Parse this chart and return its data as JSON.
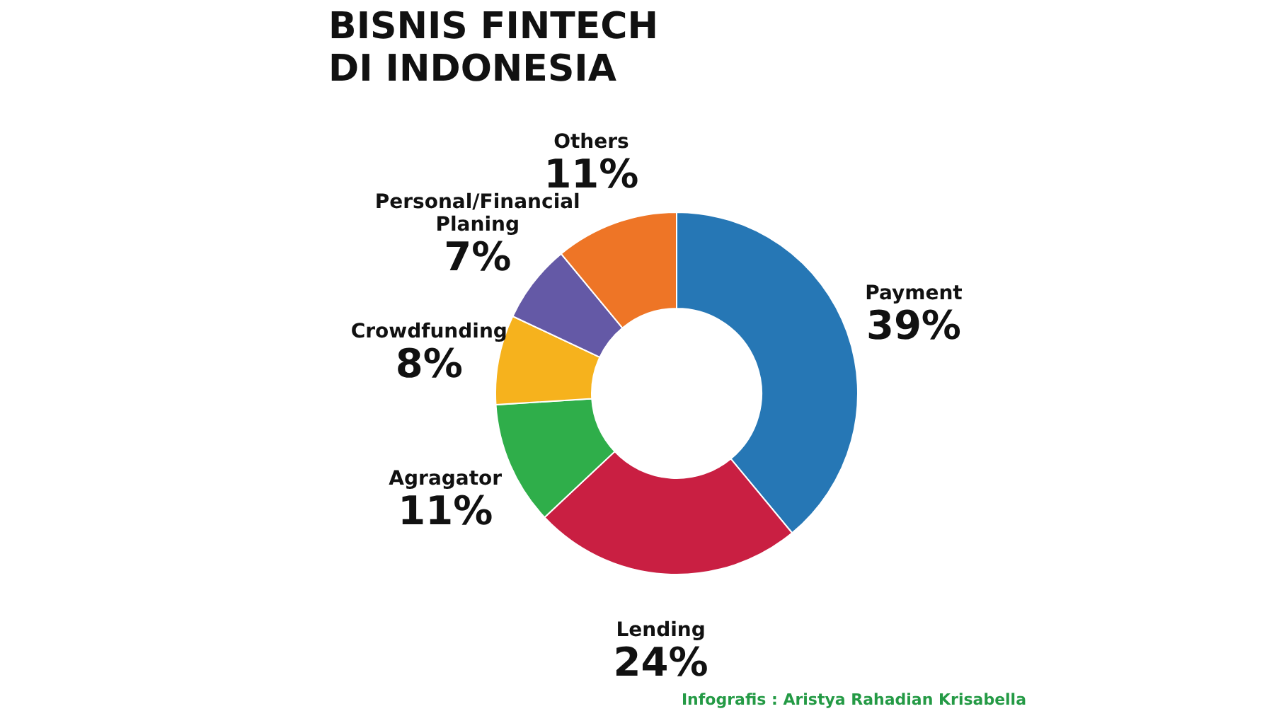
{
  "chart_data": {
    "type": "donut",
    "title": "BISNIS FINTECH DI INDONESIA",
    "categories": [
      "Payment",
      "Lending",
      "Agragator",
      "Crowdfunding",
      "Personal/Financial Planing",
      "Others"
    ],
    "values": [
      39,
      24,
      11,
      8,
      7,
      11
    ],
    "colors": [
      "#2677b5",
      "#c91f42",
      "#2fae4a",
      "#f6b21d",
      "#6459a6",
      "#ee7526"
    ],
    "value_labels": [
      "39%",
      "24%",
      "11%",
      "8%",
      "7%",
      "11%"
    ],
    "annotations": [
      "Infografis : Aristya Rahadian Krisabella"
    ]
  }
}
